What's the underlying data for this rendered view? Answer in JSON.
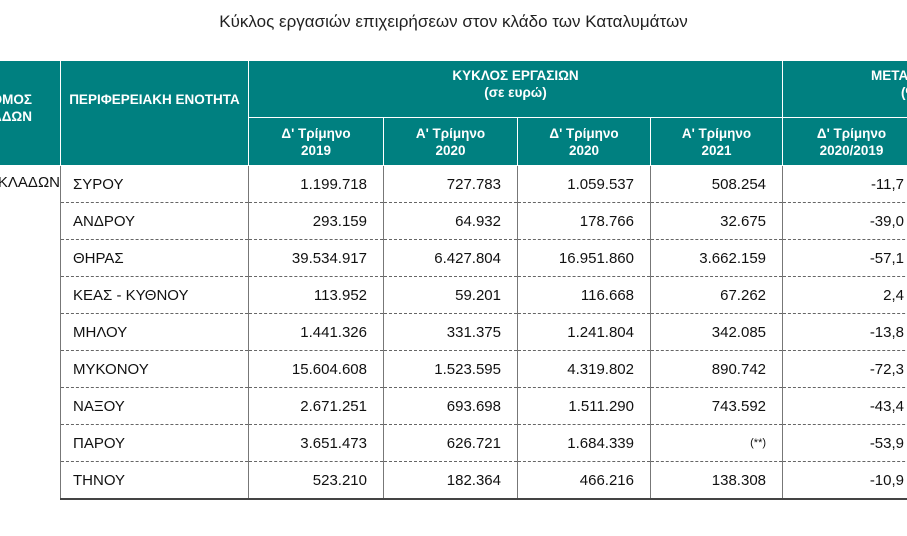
{
  "title": "Κύκλος εργασιών επιχειρήσεων στον κλάδο των Καταλυμάτων",
  "header": {
    "col0": "ΝΟΜΟΣ ΚΥΚΛΑΔΩΝ",
    "col0_row": "ΝΟΜΟΣ ΚΥΚΛΑΔΩΝ",
    "region": "ΠΕΡΙΦΕΡΕΙΑΚΗ ΕΝΟΤΗΤΑ",
    "turnover_group": "ΚΥΚΛΟΣ ΕΡΓΑΣΙΩΝ",
    "turnover_unit": "(σε ευρώ)",
    "change_group": "ΜΕΤΑΒΟΛΗ",
    "change_unit": "(%)",
    "periods": [
      {
        "line1": "Δ' Τρίμηνο",
        "line2": "2019"
      },
      {
        "line1": "Α' Τρίμηνο",
        "line2": "2020"
      },
      {
        "line1": "Δ' Τρίμηνο",
        "line2": "2020"
      },
      {
        "line1": "Α' Τρίμηνο",
        "line2": "2021"
      }
    ],
    "change_period": {
      "line1": "Δ' Τρίμηνο",
      "line2": "2020/2019"
    }
  },
  "rows": [
    {
      "name": "ΣΥΡΟΥ",
      "q4_2019": "1.199.718",
      "q1_2020": "727.783",
      "q4_2020": "1.059.537",
      "q1_2021": "508.254",
      "change": "-11,7"
    },
    {
      "name": "ΑΝΔΡΟΥ",
      "q4_2019": "293.159",
      "q1_2020": "64.932",
      "q4_2020": "178.766",
      "q1_2021": "32.675",
      "change": "-39,0"
    },
    {
      "name": "ΘΗΡΑΣ",
      "q4_2019": "39.534.917",
      "q1_2020": "6.427.804",
      "q4_2020": "16.951.860",
      "q1_2021": "3.662.159",
      "change": "-57,1"
    },
    {
      "name": "ΚΕΑΣ - ΚΥΘΝΟΥ",
      "q4_2019": "113.952",
      "q1_2020": "59.201",
      "q4_2020": "116.668",
      "q1_2021": "67.262",
      "change": "2,4"
    },
    {
      "name": "ΜΗΛΟΥ",
      "q4_2019": "1.441.326",
      "q1_2020": "331.375",
      "q4_2020": "1.241.804",
      "q1_2021": "342.085",
      "change": "-13,8"
    },
    {
      "name": "ΜΥΚΟΝΟΥ",
      "q4_2019": "15.604.608",
      "q1_2020": "1.523.595",
      "q4_2020": "4.319.802",
      "q1_2021": "890.742",
      "change": "-72,3"
    },
    {
      "name": "ΝΑΞΟΥ",
      "q4_2019": "2.671.251",
      "q1_2020": "693.698",
      "q4_2020": "1.511.290",
      "q1_2021": "743.592",
      "change": "-43,4"
    },
    {
      "name": "ΠΑΡΟΥ",
      "q4_2019": "3.651.473",
      "q1_2020": "626.721",
      "q4_2020": "1.684.339",
      "q1_2021": "(**)",
      "change": "-53,9"
    },
    {
      "name": "ΤΗΝΟΥ",
      "q4_2019": "523.210",
      "q1_2020": "182.364",
      "q4_2020": "466.216",
      "q1_2021": "138.308",
      "change": "-10,9"
    }
  ]
}
